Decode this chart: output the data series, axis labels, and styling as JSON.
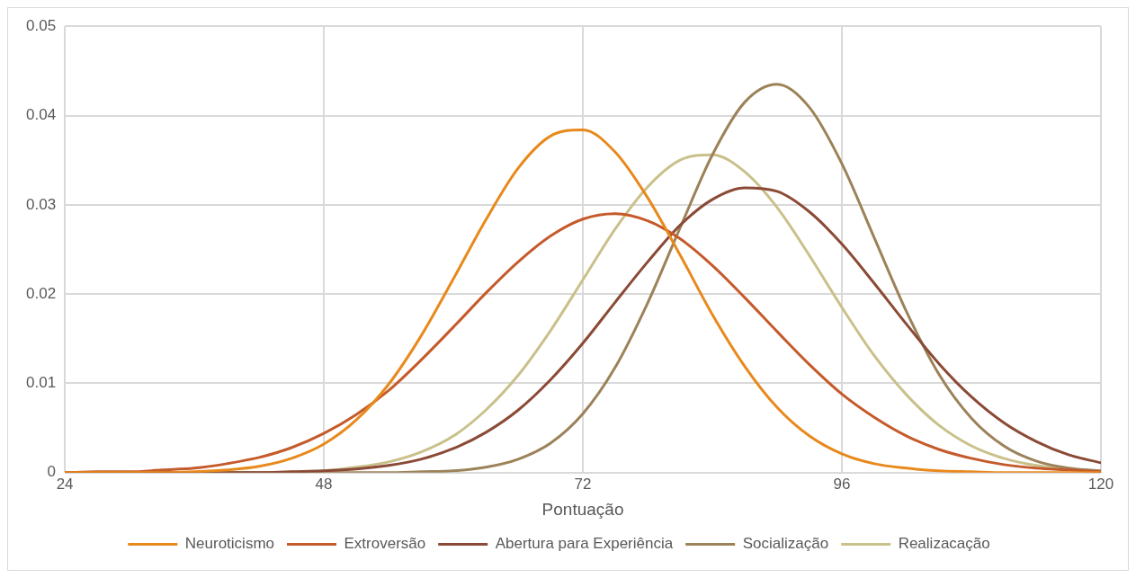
{
  "chart_data": {
    "type": "line",
    "xlabel": "Pontuação",
    "x": [
      24,
      27,
      30,
      33,
      36,
      39,
      42,
      45,
      48,
      51,
      54,
      57,
      60,
      63,
      66,
      69,
      72,
      75,
      78,
      81,
      84,
      87,
      90,
      93,
      96,
      99,
      102,
      105,
      108,
      111,
      114,
      117,
      120
    ],
    "series": [
      {
        "name": "Neuroticismo",
        "color": "#e8891c",
        "values": [
          0,
          0,
          0,
          0,
          0.0001,
          0.0003,
          0.0007,
          0.0016,
          0.0032,
          0.0059,
          0.0099,
          0.0153,
          0.0217,
          0.0283,
          0.0341,
          0.0377,
          0.0384,
          0.0359,
          0.0308,
          0.0244,
          0.0177,
          0.0119,
          0.0073,
          0.0041,
          0.0021,
          0.001,
          0.0005,
          0.0002,
          0.0001,
          0,
          0,
          0,
          0
        ]
      },
      {
        "name": "Extroversão",
        "color": "#c55a2b",
        "values": [
          0,
          0.0001,
          0.0001,
          0.0003,
          0.0005,
          0.001,
          0.0017,
          0.0028,
          0.0044,
          0.0065,
          0.0092,
          0.0126,
          0.0163,
          0.0201,
          0.0236,
          0.0265,
          0.0284,
          0.029,
          0.0282,
          0.0262,
          0.0232,
          0.0196,
          0.0158,
          0.0121,
          0.0088,
          0.0062,
          0.0041,
          0.0026,
          0.0016,
          0.0009,
          0.0005,
          0.0003,
          0.0001
        ]
      },
      {
        "name": "Abertura para Experiência",
        "color": "#8b4a36",
        "values": [
          0,
          0,
          0,
          0,
          0,
          0,
          0,
          0.0001,
          0.0002,
          0.0004,
          0.0008,
          0.0015,
          0.0027,
          0.0045,
          0.007,
          0.0104,
          0.0145,
          0.0191,
          0.0236,
          0.0277,
          0.0306,
          0.0319,
          0.0315,
          0.0292,
          0.0256,
          0.0212,
          0.0166,
          0.0122,
          0.0085,
          0.0056,
          0.0035,
          0.002,
          0.0011
        ]
      },
      {
        "name": "Socialização",
        "color": "#9c8259",
        "values": [
          0,
          0,
          0,
          0,
          0,
          0,
          0,
          0,
          0,
          0,
          0,
          0.0001,
          0.0002,
          0.0006,
          0.0015,
          0.0033,
          0.0066,
          0.0118,
          0.019,
          0.0274,
          0.0356,
          0.0415,
          0.0435,
          0.0409,
          0.0346,
          0.0263,
          0.018,
          0.011,
          0.0061,
          0.003,
          0.0013,
          0.0005,
          0.0002
        ]
      },
      {
        "name": "Realizacação",
        "color": "#c9c08a",
        "values": [
          0,
          0,
          0,
          0,
          0,
          0,
          0,
          0.0001,
          0.0002,
          0.0006,
          0.0012,
          0.0023,
          0.0041,
          0.007,
          0.0109,
          0.0159,
          0.0216,
          0.0273,
          0.032,
          0.035,
          0.0356,
          0.0337,
          0.0297,
          0.0243,
          0.0185,
          0.0131,
          0.0087,
          0.0053,
          0.003,
          0.0016,
          0.0008,
          0.0004,
          0.0002
        ]
      }
    ],
    "xlim": [
      24,
      120
    ],
    "xticks": [
      24,
      48,
      72,
      96,
      120
    ],
    "ylim": [
      0,
      0.05
    ],
    "yticks": [
      0,
      0.01,
      0.02,
      0.03,
      0.04,
      0.05
    ],
    "grid": true,
    "legend": "bottom",
    "marker": "none",
    "line_style": "solid"
  }
}
